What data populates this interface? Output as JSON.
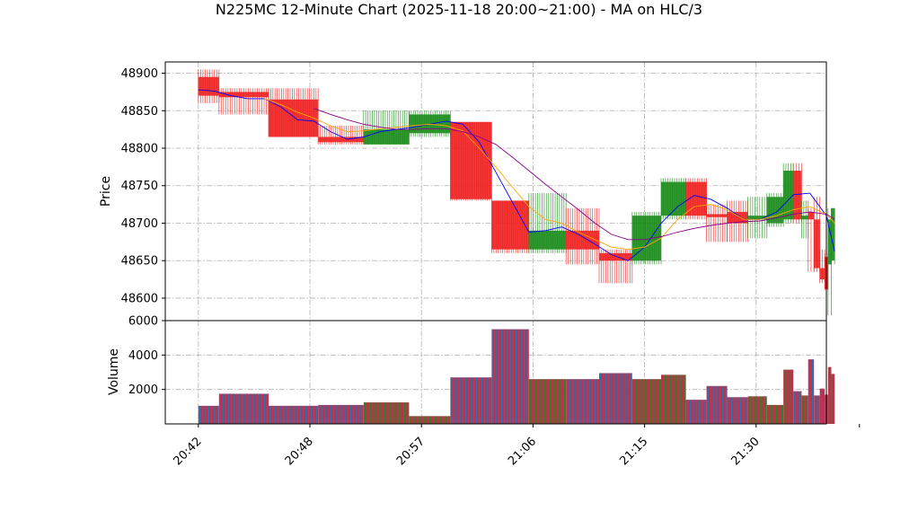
{
  "chart_data": {
    "type": "candlestick-volume",
    "title": "N225MC 12-Minute Chart (2025-11-18 20:00~21:00) - MA on HLC/3",
    "price_panel": {
      "ylabel": "Price",
      "ylim": [
        48570,
        48915
      ],
      "yticks": [
        48600,
        48650,
        48700,
        48750,
        48800,
        48850,
        48900
      ],
      "grid": true
    },
    "volume_panel": {
      "ylabel": "Volume",
      "ylim": [
        0,
        6000
      ],
      "yticks": [
        2000,
        4000,
        6000
      ],
      "grid": true
    },
    "xlim": [
      20.0,
      100.0
    ],
    "xticks": [
      {
        "x": 24,
        "label": "20:42"
      },
      {
        "x": 37.5,
        "label": "20:48"
      },
      {
        "x": 51,
        "label": "20:57"
      },
      {
        "x": 64.5,
        "label": "21:06"
      },
      {
        "x": 78,
        "label": "21:15"
      },
      {
        "x": 91.5,
        "label": "21:30"
      },
      {
        "x": 104,
        "label": ""
      }
    ],
    "colors": {
      "up": "#1a8c1a",
      "down": "#f02020",
      "volume_a": "#1f77b4",
      "volume_b": "#c0304f",
      "ma_fast": "#0000ff",
      "ma_mid": "#ffa500",
      "ma_slow": "#8b008b"
    },
    "candles": [
      {
        "x0": 24.0,
        "x1": 26.5,
        "open": 48895,
        "close": 48870,
        "high": 48905,
        "low": 48860,
        "volume": 1050
      },
      {
        "x0": 26.5,
        "x1": 32.5,
        "open": 48875,
        "close": 48868,
        "high": 48880,
        "low": 48845,
        "volume": 1750
      },
      {
        "x0": 32.5,
        "x1": 38.5,
        "open": 48865,
        "close": 48815,
        "high": 48880,
        "low": 48815,
        "volume": 1050
      },
      {
        "x0": 38.5,
        "x1": 44.0,
        "open": 48815,
        "close": 48808,
        "high": 48830,
        "low": 48805,
        "volume": 1100
      },
      {
        "x0": 44.0,
        "x1": 49.5,
        "open": 48805,
        "close": 48825,
        "high": 48850,
        "low": 48805,
        "volume": 1250
      },
      {
        "x0": 49.5,
        "x1": 54.5,
        "open": 48820,
        "close": 48845,
        "high": 48850,
        "low": 48815,
        "volume": 450
      },
      {
        "x0": 54.5,
        "x1": 59.5,
        "open": 48835,
        "close": 48732,
        "high": 48835,
        "low": 48730,
        "volume": 2700
      },
      {
        "x0": 59.5,
        "x1": 64.0,
        "open": 48730,
        "close": 48665,
        "high": 48730,
        "low": 48660,
        "volume": 5500
      },
      {
        "x0": 64.0,
        "x1": 68.5,
        "open": 48665,
        "close": 48690,
        "high": 48740,
        "low": 48660,
        "volume": 2600
      },
      {
        "x0": 68.5,
        "x1": 72.5,
        "open": 48690,
        "close": 48665,
        "high": 48720,
        "low": 48645,
        "volume": 2600
      },
      {
        "x0": 72.5,
        "x1": 76.5,
        "open": 48660,
        "close": 48650,
        "high": 48665,
        "low": 48620,
        "volume": 2950
      },
      {
        "x0": 76.5,
        "x1": 80.0,
        "open": 48650,
        "close": 48710,
        "high": 48715,
        "low": 48645,
        "volume": 2600
      },
      {
        "x0": 80.0,
        "x1": 83.0,
        "open": 48710,
        "close": 48755,
        "high": 48760,
        "low": 48705,
        "volume": 2850
      },
      {
        "x0": 83.0,
        "x1": 85.5,
        "open": 48755,
        "close": 48710,
        "high": 48760,
        "low": 48705,
        "volume": 1400
      },
      {
        "x0": 85.5,
        "x1": 88.0,
        "open": 48712,
        "close": 48708,
        "high": 48725,
        "low": 48675,
        "volume": 2200
      },
      {
        "x0": 88.0,
        "x1": 90.5,
        "open": 48715,
        "close": 48700,
        "high": 48730,
        "low": 48675,
        "volume": 1550
      },
      {
        "x0": 90.5,
        "x1": 92.8,
        "open": 48705,
        "close": 48710,
        "high": 48735,
        "low": 48680,
        "volume": 1600
      },
      {
        "x0": 92.8,
        "x1": 94.8,
        "open": 48700,
        "close": 48735,
        "high": 48740,
        "low": 48695,
        "volume": 1100
      },
      {
        "x0": 94.8,
        "x1": 96.0,
        "open": 48705,
        "close": 48770,
        "high": 48780,
        "low": 48700,
        "volume": 3150
      },
      {
        "x0": 96.0,
        "x1": 97.0,
        "open": 48770,
        "close": 48705,
        "high": 48780,
        "low": 48700,
        "volume": 1900
      },
      {
        "x0": 97.0,
        "x1": 97.8,
        "open": 48705,
        "close": 48710,
        "high": 48730,
        "low": 48680,
        "volume": 1650
      },
      {
        "x0": 97.8,
        "x1": 98.5,
        "open": 48715,
        "close": 48705,
        "high": 48720,
        "low": 48635,
        "volume": 3750
      },
      {
        "x0": 98.5,
        "x1": 99.2,
        "open": 48705,
        "close": 48640,
        "high": 48735,
        "low": 48635,
        "volume": 1650
      },
      {
        "x0": 99.2,
        "x1": 99.8,
        "open": 48640,
        "close": 48625,
        "high": 48665,
        "low": 48620,
        "volume": 2050
      },
      {
        "x0": 99.8,
        "x1": 100.2,
        "open": 48655,
        "close": 48612,
        "high": 48660,
        "low": 48610,
        "volume": 1700
      },
      {
        "x0": 100.2,
        "x1": 100.6,
        "open": 48645,
        "close": 48705,
        "high": 48720,
        "low": 48577,
        "volume": 3300
      },
      {
        "x0": 100.6,
        "x1": 101.0,
        "open": 48650,
        "close": 48720,
        "high": 48720,
        "low": 48645,
        "volume": 2900
      }
    ],
    "ma_series": [
      {
        "key": "ma_fast",
        "x": [
          24,
          26,
          28,
          30,
          32,
          34,
          36,
          38,
          40,
          42,
          44,
          46,
          48,
          50,
          52,
          54,
          56,
          58,
          60,
          62,
          64,
          66,
          68,
          70,
          72,
          74,
          76,
          78,
          80,
          82,
          84,
          86,
          88,
          90,
          92,
          94,
          96,
          98,
          100,
          101
        ],
        "y": [
          48878,
          48876,
          48870,
          48866,
          48866,
          48855,
          48838,
          48836,
          48822,
          48812,
          48815,
          48822,
          48825,
          48828,
          48832,
          48836,
          48832,
          48808,
          48768,
          48728,
          48688,
          48690,
          48695,
          48685,
          48672,
          48658,
          48650,
          48668,
          48700,
          48722,
          48737,
          48732,
          48720,
          48705,
          48705,
          48715,
          48738,
          48740,
          48710,
          48662
        ]
      },
      {
        "key": "ma_mid",
        "x": [
          32,
          34,
          36,
          38,
          40,
          42,
          44,
          46,
          48,
          50,
          52,
          54,
          56,
          58,
          60,
          62,
          64,
          66,
          68,
          70,
          72,
          74,
          76,
          78,
          80,
          82,
          84,
          86,
          88,
          90,
          92,
          94,
          96,
          98,
          100,
          101
        ],
        "y": [
          48866,
          48858,
          48848,
          48840,
          48830,
          48822,
          48823,
          48826,
          48828,
          48830,
          48832,
          48830,
          48823,
          48800,
          48775,
          48748,
          48722,
          48705,
          48700,
          48688,
          48678,
          48668,
          48665,
          48668,
          48680,
          48705,
          48722,
          48725,
          48718,
          48705,
          48705,
          48710,
          48718,
          48722,
          48712,
          48700
        ]
      },
      {
        "key": "ma_slow",
        "x": [
          38,
          40,
          42,
          44,
          46,
          48,
          50,
          52,
          54,
          56,
          58,
          60,
          62,
          64,
          66,
          68,
          70,
          72,
          74,
          76,
          78,
          80,
          82,
          84,
          86,
          88,
          90,
          92,
          94,
          96,
          98,
          100,
          101
        ],
        "y": [
          48853,
          48845,
          48838,
          48832,
          48828,
          48825,
          48825,
          48826,
          48826,
          48822,
          48815,
          48805,
          48788,
          48770,
          48752,
          48735,
          48718,
          48700,
          48685,
          48678,
          48678,
          48682,
          48688,
          48693,
          48697,
          48700,
          48702,
          48703,
          48707,
          48712,
          48715,
          48712,
          48705
        ]
      }
    ]
  }
}
